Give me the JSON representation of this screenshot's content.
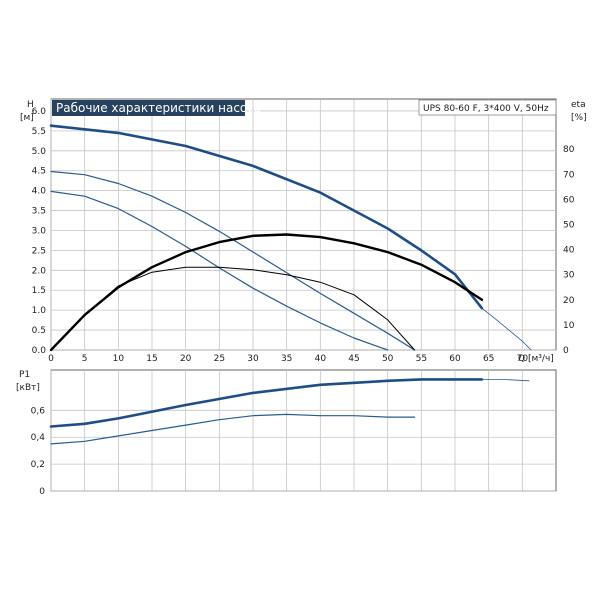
{
  "chart_data": [
    {
      "type": "line",
      "title": "Рабочие характеристики насоса",
      "model_label": "UPS 80-60 F, 3*400 V, 50Hz",
      "ylabel": "H",
      "ylabel_unit": "[м]",
      "y2label": "eta",
      "y2label_unit": "[%]",
      "xlabel": "Q",
      "xlabel_unit": "[м³/ч]",
      "xlim": [
        0,
        75
      ],
      "ylim": [
        0,
        6.3
      ],
      "y2lim": [
        0,
        100
      ],
      "x_ticks": [
        "0",
        "5",
        "10",
        "15",
        "20",
        "25",
        "30",
        "35",
        "40",
        "45",
        "50",
        "55",
        "60",
        "65",
        "70"
      ],
      "y_ticks": [
        "0.0",
        "0.5",
        "1.0",
        "1.5",
        "2.0",
        "2.5",
        "3.0",
        "3.5",
        "4.0",
        "4.5",
        "5.0",
        "5.5",
        "6.0"
      ],
      "y2_ticks": [
        "0",
        "10",
        "20",
        "30",
        "40",
        "50",
        "60",
        "70",
        "80"
      ],
      "grid": true,
      "colors": {
        "blue_thick": "#1f4e87",
        "blue_thin": "#2a5a93",
        "black": "#000000"
      },
      "series": [
        {
          "kind": "head",
          "axis": "left",
          "width": 2.6,
          "color": "blue_thick",
          "x": [
            0,
            10,
            20,
            30,
            40,
            50,
            55,
            60,
            64
          ],
          "y": [
            5.63,
            5.45,
            5.12,
            4.62,
            3.95,
            3.05,
            2.5,
            1.9,
            1.05
          ]
        },
        {
          "kind": "head",
          "axis": "left",
          "width": 0.8,
          "color": "blue_thin",
          "x": [
            64,
            66,
            68,
            70,
            71.3
          ],
          "y": [
            1.05,
            0.78,
            0.5,
            0.22,
            0
          ]
        },
        {
          "kind": "head",
          "axis": "left",
          "width": 1.2,
          "color": "blue_thin",
          "x": [
            0,
            5,
            10,
            15,
            20,
            25,
            30,
            35,
            40,
            45,
            50,
            54
          ],
          "y": [
            4.48,
            4.4,
            4.18,
            3.86,
            3.45,
            2.98,
            2.46,
            1.94,
            1.42,
            0.92,
            0.42,
            0
          ]
        },
        {
          "kind": "head",
          "axis": "left",
          "width": 1.2,
          "color": "blue_thin",
          "x": [
            0,
            5,
            10,
            15,
            20,
            25,
            30,
            35,
            40,
            45,
            50
          ],
          "y": [
            3.98,
            3.86,
            3.55,
            3.1,
            2.6,
            2.06,
            1.55,
            1.1,
            0.68,
            0.3,
            0
          ]
        },
        {
          "kind": "eta",
          "axis": "right",
          "width": 2.4,
          "color": "black",
          "x": [
            0,
            5,
            10,
            15,
            20,
            25,
            30,
            35,
            40,
            45,
            50,
            55,
            60,
            64
          ],
          "y": [
            0,
            14,
            25,
            33,
            39,
            43,
            45.5,
            46,
            45,
            42.5,
            39,
            34,
            27,
            20
          ]
        },
        {
          "kind": "eta",
          "axis": "right",
          "width": 1.0,
          "color": "black",
          "x": [
            0,
            5,
            10,
            15,
            20,
            25,
            30,
            35,
            40,
            45,
            50,
            54
          ],
          "y": [
            0,
            14,
            25.5,
            31,
            33,
            33,
            32,
            30,
            27,
            22,
            12,
            0
          ]
        }
      ]
    },
    {
      "type": "line",
      "ylabel": "P1",
      "ylabel_unit": "[кВт]",
      "xlim": [
        0,
        75
      ],
      "ylim": [
        0,
        0.9
      ],
      "y_ticks": [
        "0",
        "0,2",
        "0,4",
        "0,6"
      ],
      "grid": true,
      "series": [
        {
          "axis": "left",
          "width": 2.6,
          "color": "blue_thick",
          "x": [
            0,
            5,
            10,
            20,
            30,
            40,
            50,
            55,
            60,
            64
          ],
          "y": [
            0.48,
            0.5,
            0.54,
            0.64,
            0.73,
            0.79,
            0.82,
            0.83,
            0.83,
            0.83
          ]
        },
        {
          "axis": "left",
          "width": 0.8,
          "color": "blue_thin",
          "x": [
            64,
            67,
            71
          ],
          "y": [
            0.83,
            0.83,
            0.82
          ]
        },
        {
          "axis": "left",
          "width": 1.2,
          "color": "blue_thin",
          "x": [
            0,
            5,
            10,
            15,
            20,
            25,
            30,
            35,
            40,
            45,
            50,
            54
          ],
          "y": [
            0.35,
            0.37,
            0.41,
            0.45,
            0.49,
            0.53,
            0.56,
            0.57,
            0.56,
            0.56,
            0.55,
            0.55
          ]
        }
      ]
    }
  ]
}
